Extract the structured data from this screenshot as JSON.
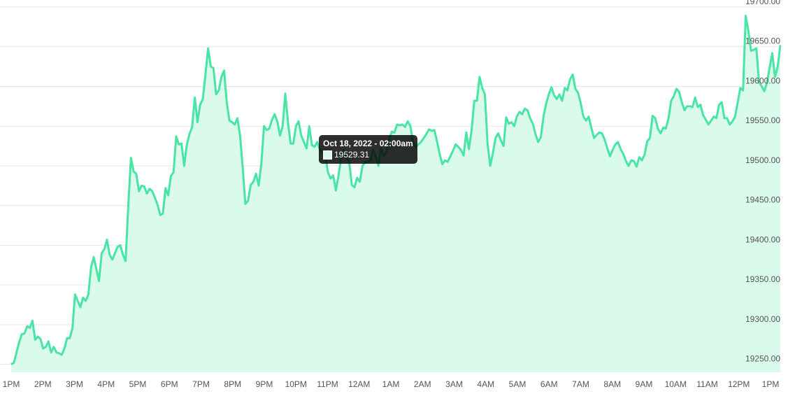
{
  "chart_data": {
    "type": "area",
    "x_ticks": [
      "1PM",
      "2PM",
      "3PM",
      "4PM",
      "5PM",
      "6PM",
      "7PM",
      "8PM",
      "9PM",
      "10PM",
      "11PM",
      "12AM",
      "1AM",
      "2AM",
      "3AM",
      "4AM",
      "5AM",
      "6AM",
      "7AM",
      "8AM",
      "9AM",
      "10AM",
      "11AM",
      "12PM",
      "1PM"
    ],
    "y_ticks": [
      "19250.00",
      "19300.00",
      "19350.00",
      "19400.00",
      "19450.00",
      "19500.00",
      "19550.00",
      "19600.00",
      "19650.00",
      "19700.00"
    ],
    "ylim": [
      19240,
      19700
    ],
    "grid": true,
    "legend": "none",
    "colors": {
      "line": "#48e5a5",
      "fill": "#dafaec"
    },
    "series": [
      {
        "values": [
          19250,
          19252,
          19265,
          19278,
          19288,
          19289,
          19298,
          19296,
          19305,
          19281,
          19285,
          19282,
          19270,
          19272,
          19279,
          19265,
          19272,
          19265,
          19264,
          19262,
          19270,
          19283,
          19283,
          19295,
          19338,
          19330,
          19322,
          19334,
          19330,
          19338,
          19372,
          19385,
          19370,
          19355,
          19390,
          19395,
          19407,
          19388,
          19382,
          19390,
          19398,
          19400,
          19388,
          19380,
          19450,
          19510,
          19493,
          19490,
          19468,
          19475,
          19474,
          19465,
          19471,
          19468,
          19460,
          19451,
          19438,
          19440,
          19472,
          19463,
          19487,
          19492,
          19537,
          19527,
          19528,
          19500,
          19527,
          19540,
          19549,
          19586,
          19555,
          19577,
          19584,
          19615,
          19648,
          19625,
          19623,
          19590,
          19595,
          19612,
          19620,
          19580,
          19557,
          19555,
          19552,
          19560,
          19538,
          19498,
          19452,
          19456,
          19476,
          19480,
          19490,
          19475,
          19503,
          19550,
          19545,
          19547,
          19558,
          19565,
          19556,
          19538,
          19550,
          19591,
          19555,
          19528,
          19528,
          19550,
          19556,
          19538,
          19530,
          19522,
          19550,
          19526,
          19524,
          19530,
          19520,
          19518,
          19515,
          19492,
          19484,
          19488,
          19469,
          19488,
          19510,
          19520,
          19510,
          19505,
          19476,
          19473,
          19485,
          19480,
          19500,
          19505,
          19505,
          19507,
          19520,
          19512,
          19500,
          19522,
          19512,
          19518,
          19533,
          19543,
          19542,
          19552,
          19551,
          19552,
          19549,
          19556,
          19550,
          19530,
          19524,
          19527,
          19530,
          19535,
          19540,
          19546,
          19544,
          19545,
          19531,
          19515,
          19502,
          19507,
          19505,
          19512,
          19519,
          19527,
          19524,
          19520,
          19513,
          19542,
          19521,
          19545,
          19582,
          19582,
          19612,
          19598,
          19590,
          19528,
          19500,
          19516,
          19535,
          19541,
          19532,
          19525,
          19561,
          19553,
          19555,
          19550,
          19562,
          19568,
          19565,
          19572,
          19570,
          19560,
          19553,
          19540,
          19530,
          19536,
          19562,
          19578,
          19590,
          19599,
          19589,
          19584,
          19590,
          19582,
          19598,
          19595,
          19609,
          19615,
          19597,
          19592,
          19579,
          19562,
          19557,
          19562,
          19548,
          19535,
          19539,
          19542,
          19541,
          19533,
          19522,
          19512,
          19520,
          19527,
          19530,
          19521,
          19515,
          19506,
          19500,
          19507,
          19506,
          19499,
          19511,
          19507,
          19514,
          19531,
          19535,
          19563,
          19560,
          19547,
          19541,
          19548,
          19547,
          19560,
          19582,
          19588,
          19597,
          19593,
          19580,
          19570,
          19575,
          19575,
          19574,
          19586,
          19574,
          19577,
          19564,
          19558,
          19552,
          19557,
          19562,
          19560,
          19577,
          19580,
          19560,
          19560,
          19552,
          19556,
          19562,
          19580,
          19598,
          19595,
          19689,
          19670,
          19645,
          19646,
          19648,
          19606,
          19600,
          19594,
          19605,
          19624,
          19642,
          19612,
          19624,
          19652
        ]
      }
    ],
    "tooltip": {
      "title": "Oct 18, 2022 - 02:00am",
      "value": "19529.31"
    }
  }
}
